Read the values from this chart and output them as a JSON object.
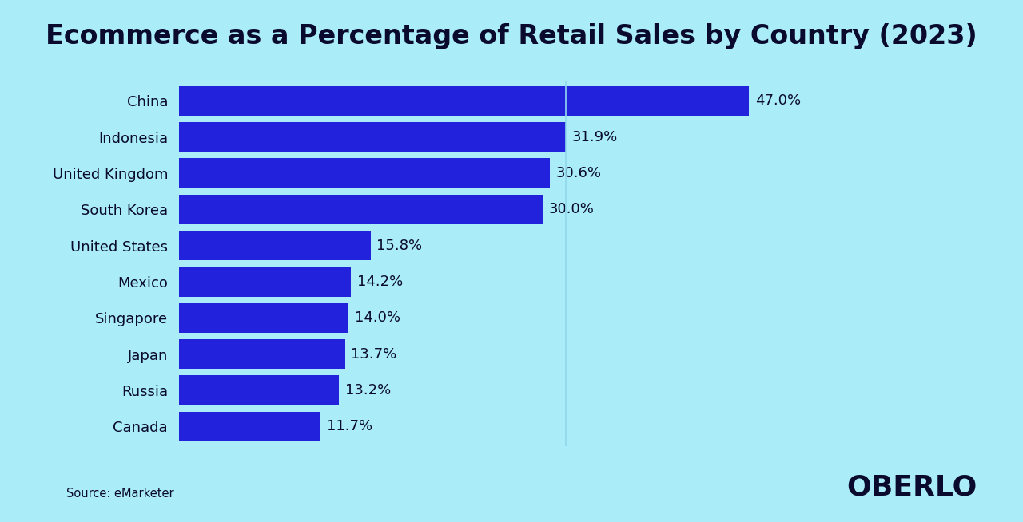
{
  "title": "Ecommerce as a Percentage of Retail Sales by Country (2023)",
  "countries": [
    "China",
    "Indonesia",
    "United Kingdom",
    "South Korea",
    "United States",
    "Mexico",
    "Singapore",
    "Japan",
    "Russia",
    "Canada"
  ],
  "values": [
    47.0,
    31.9,
    30.6,
    30.0,
    15.8,
    14.2,
    14.0,
    13.7,
    13.2,
    11.7
  ],
  "bar_color": "#2222dd",
  "background_color": "#aaecf8",
  "text_color": "#0a0a2e",
  "label_fontsize": 13,
  "title_fontsize": 24,
  "source_text": "Source: eMarketer",
  "brand_text": "OBERLO",
  "xlim": [
    0,
    54
  ],
  "bar_height": 0.82,
  "vline_x": 31.9,
  "vline_color": "#90d8ec"
}
